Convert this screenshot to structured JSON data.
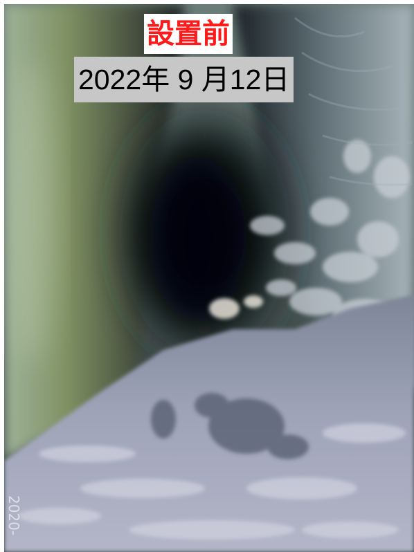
{
  "caption": {
    "title": "設置前",
    "title_color": "#ff1a1a",
    "date": "2022年 9 月12日",
    "date_background": "#c7c7c7"
  },
  "photo": {
    "timestamp_fragment": "2020-"
  }
}
